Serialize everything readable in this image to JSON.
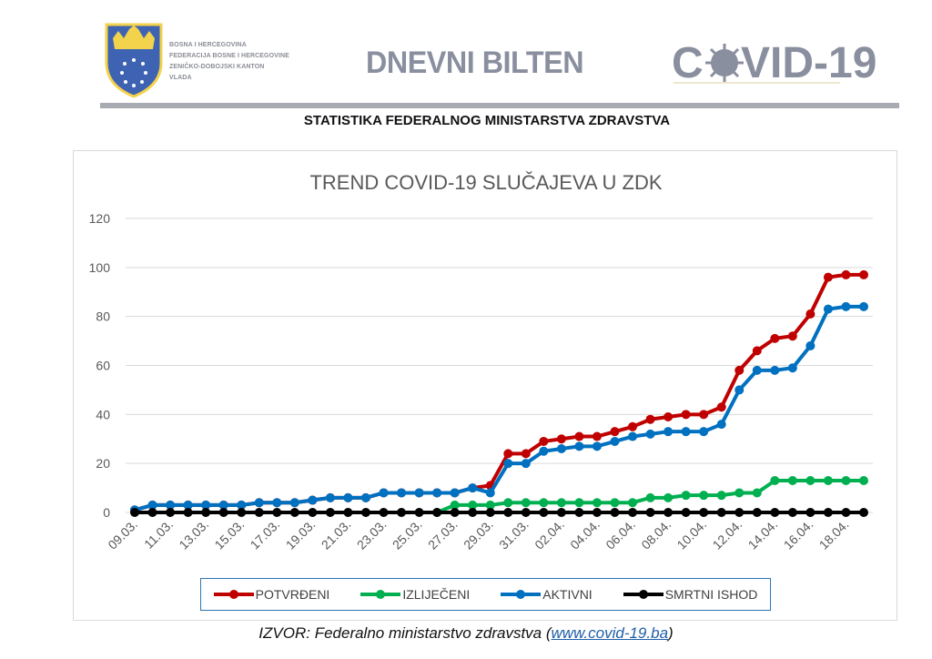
{
  "header": {
    "org_lines": [
      "BOSNA I HERCEGOVINA",
      "FEDERACIJA BOSNE I HERCEGOVINE",
      "ZENIČKO-DOBOJSKI KANTON",
      "VLADA"
    ],
    "bulletin_title": "DNEVNI BILTEN",
    "logo_text": "COVID-19",
    "subtitle": "STATISTIKA FEDERALNOG MINISTARSTVA ZDRAVSTVA"
  },
  "footer": {
    "source_prefix": "IZVOR: Federalno ministarstvo zdravstva (",
    "source_link": "www.covid-19.ba",
    "source_suffix": ")"
  },
  "chart_data": {
    "type": "line",
    "title": "TREND COVID-19 SLUČAJEVA U ZDK",
    "xlabel": "",
    "ylabel": "",
    "ylim": [
      0,
      120
    ],
    "yticks": [
      0,
      20,
      40,
      60,
      80,
      100,
      120
    ],
    "grid": true,
    "legend_position": "bottom",
    "x": [
      "09.03.",
      "10.03.",
      "11.03.",
      "12.03.",
      "13.03.",
      "14.03.",
      "15.03.",
      "16.03.",
      "17.03.",
      "18.03.",
      "19.03.",
      "20.03.",
      "21.03.",
      "22.03.",
      "23.03.",
      "24.03.",
      "25.03.",
      "26.03.",
      "27.03.",
      "28.03.",
      "29.03.",
      "30.03.",
      "31.03.",
      "01.04.",
      "02.04.",
      "03.04.",
      "04.04.",
      "05.04.",
      "06.04.",
      "07.04.",
      "08.04.",
      "09.04.",
      "10.04.",
      "11.04.",
      "12.04.",
      "13.04.",
      "14.04.",
      "15.04.",
      "16.04.",
      "17.04.",
      "18.04.",
      "19.04."
    ],
    "x_tick_labels": [
      "09.03.",
      "11.03.",
      "13.03.",
      "15.03.",
      "17.03.",
      "19.03.",
      "21.03.",
      "23.03.",
      "25.03.",
      "27.03.",
      "29.03.",
      "31.03.",
      "02.04.",
      "04.04.",
      "06.04.",
      "08.04.",
      "10.04.",
      "12.04.",
      "14.04.",
      "16.04.",
      "18.04."
    ],
    "series": [
      {
        "name": "POTVRĐENI",
        "color": "#c00000",
        "values": [
          1,
          3,
          3,
          3,
          3,
          3,
          3,
          4,
          4,
          4,
          5,
          6,
          6,
          6,
          8,
          8,
          8,
          8,
          8,
          10,
          11,
          24,
          24,
          29,
          30,
          31,
          31,
          33,
          35,
          38,
          39,
          40,
          40,
          43,
          58,
          66,
          71,
          72,
          81,
          96,
          97,
          97
        ]
      },
      {
        "name": "IZLIJEČENI",
        "color": "#00b050",
        "values": [
          null,
          null,
          null,
          null,
          null,
          null,
          null,
          null,
          null,
          null,
          null,
          null,
          null,
          null,
          null,
          null,
          null,
          0,
          3,
          3,
          3,
          4,
          4,
          4,
          4,
          4,
          4,
          4,
          4,
          6,
          6,
          7,
          7,
          7,
          8,
          8,
          13,
          13,
          13,
          13,
          13,
          13
        ]
      },
      {
        "name": "AKTIVNI",
        "color": "#0070c0",
        "values": [
          1,
          3,
          3,
          3,
          3,
          3,
          3,
          4,
          4,
          4,
          5,
          6,
          6,
          6,
          8,
          8,
          8,
          8,
          8,
          10,
          8,
          20,
          20,
          25,
          26,
          27,
          27,
          29,
          31,
          32,
          33,
          33,
          33,
          36,
          50,
          58,
          58,
          59,
          68,
          83,
          84,
          84
        ]
      },
      {
        "name": "SMRTNI ISHOD",
        "color": "#000000",
        "values": [
          0,
          0,
          0,
          0,
          0,
          0,
          0,
          0,
          0,
          0,
          0,
          0,
          0,
          0,
          0,
          0,
          0,
          0,
          0,
          0,
          0,
          0,
          0,
          0,
          0,
          0,
          0,
          0,
          0,
          0,
          0,
          0,
          0,
          0,
          0,
          0,
          0,
          0,
          0,
          0,
          0,
          0
        ]
      }
    ]
  }
}
